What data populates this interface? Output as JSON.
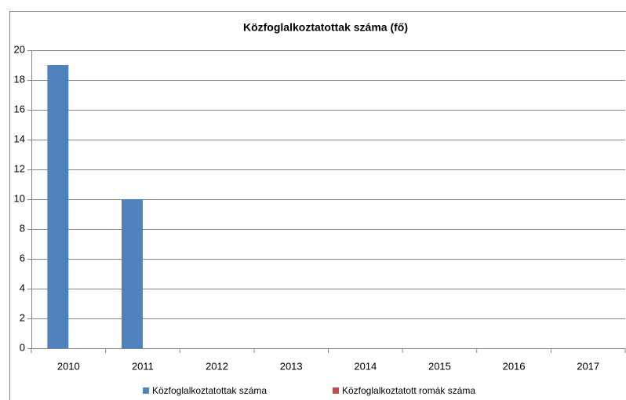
{
  "chart_data": {
    "type": "bar",
    "title": "Közfoglalkoztatottak száma (fő)",
    "categories": [
      "2010",
      "2011",
      "2012",
      "2013",
      "2014",
      "2015",
      "2016",
      "2017"
    ],
    "series": [
      {
        "name": "Közfoglalkoztatottak száma",
        "color": "#4f81bd",
        "values": [
          19,
          10,
          0,
          0,
          0,
          0,
          0,
          0
        ]
      },
      {
        "name": "Közfoglalkoztatott romák száma",
        "color": "#c0504d",
        "values": [
          0,
          0,
          0,
          0,
          0,
          0,
          0,
          0
        ]
      }
    ],
    "ylim": [
      0,
      20
    ],
    "yticks": [
      0,
      2,
      4,
      6,
      8,
      10,
      12,
      14,
      16,
      18,
      20
    ],
    "grid": true,
    "legend": "bottom"
  }
}
